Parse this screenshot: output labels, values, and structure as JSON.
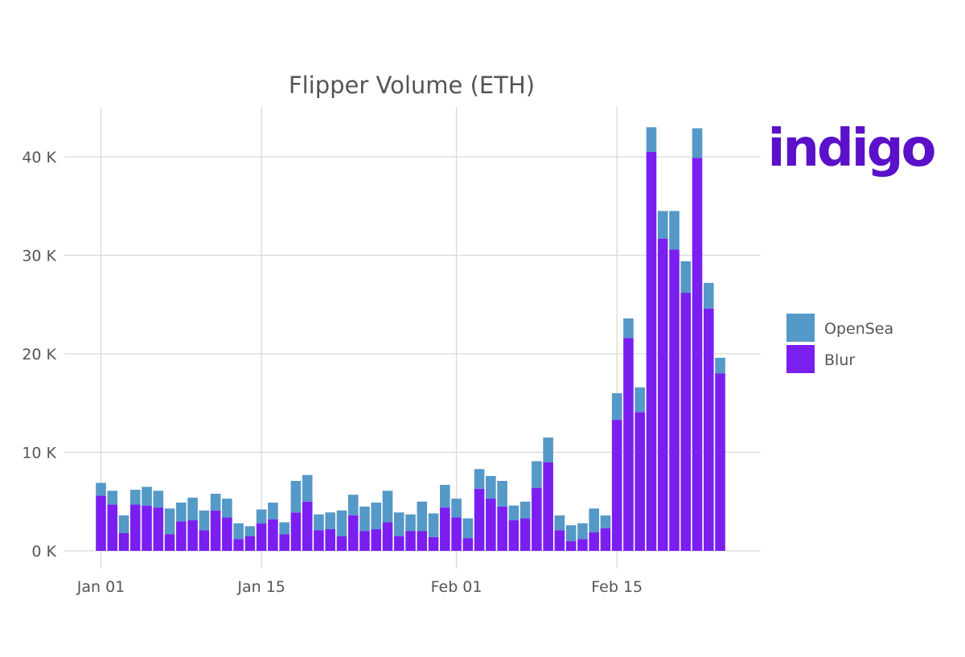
{
  "chart_data": {
    "type": "bar",
    "stacked": true,
    "title": "Flipper Volume (ETH)",
    "xlabel": "",
    "ylabel": "",
    "x_ticks": [
      "Jan 01",
      "Jan 15",
      "Feb 01",
      "Feb 15"
    ],
    "y_ticks": [
      "0 K",
      "10 K",
      "20 K",
      "30 K",
      "40 K"
    ],
    "ylim": [
      0,
      45000
    ],
    "grid": true,
    "legend_position": "right",
    "categories": [
      "Jan 01",
      "Jan 02",
      "Jan 03",
      "Jan 04",
      "Jan 05",
      "Jan 06",
      "Jan 07",
      "Jan 08",
      "Jan 09",
      "Jan 10",
      "Jan 11",
      "Jan 12",
      "Jan 13",
      "Jan 14",
      "Jan 15",
      "Jan 16",
      "Jan 17",
      "Jan 18",
      "Jan 19",
      "Jan 20",
      "Jan 21",
      "Jan 22",
      "Jan 23",
      "Jan 24",
      "Jan 25",
      "Jan 26",
      "Jan 27",
      "Jan 28",
      "Jan 29",
      "Jan 30",
      "Jan 31",
      "Feb 01",
      "Feb 02",
      "Feb 03",
      "Feb 04",
      "Feb 05",
      "Feb 06",
      "Feb 07",
      "Feb 08",
      "Feb 09",
      "Feb 10",
      "Feb 11",
      "Feb 12",
      "Feb 13",
      "Feb 14",
      "Feb 15",
      "Feb 16",
      "Feb 17",
      "Feb 18",
      "Feb 19",
      "Feb 20",
      "Feb 21",
      "Feb 22",
      "Feb 23",
      "Feb 24"
    ],
    "series": [
      {
        "name": "Blur",
        "color": "#7a1ff0",
        "values": [
          5600,
          4700,
          1800,
          4700,
          4600,
          4400,
          1700,
          3000,
          3100,
          2100,
          4100,
          3400,
          1200,
          1500,
          2800,
          3200,
          1700,
          3900,
          5000,
          2100,
          2200,
          1500,
          3600,
          2000,
          2200,
          2900,
          1500,
          2000,
          2000,
          1400,
          4400,
          3400,
          1300,
          6300,
          5300,
          4500,
          3100,
          3300,
          6400,
          9000,
          2100,
          1000,
          1200,
          1900,
          2300,
          13300,
          21600,
          14100,
          40500,
          31700,
          30600,
          26200,
          39900,
          24600,
          18000
        ]
      },
      {
        "name": "OpenSea",
        "color": "#5499c7",
        "values": [
          1300,
          1400,
          1800,
          1500,
          1900,
          1700,
          2600,
          1900,
          2300,
          2000,
          1700,
          1900,
          1600,
          1000,
          1400,
          1700,
          1200,
          3200,
          2700,
          1600,
          1700,
          2600,
          2100,
          2500,
          2700,
          3200,
          2400,
          1700,
          3000,
          2400,
          2300,
          1900,
          2000,
          2000,
          2300,
          2600,
          1500,
          1700,
          2700,
          2500,
          1500,
          1600,
          1600,
          2400,
          1300,
          2700,
          2000,
          2500,
          2500,
          2800,
          3900,
          3200,
          3000,
          2600,
          1600
        ]
      }
    ]
  },
  "branding": {
    "logo_text": "indigo",
    "logo_color": "#5a11c9"
  }
}
